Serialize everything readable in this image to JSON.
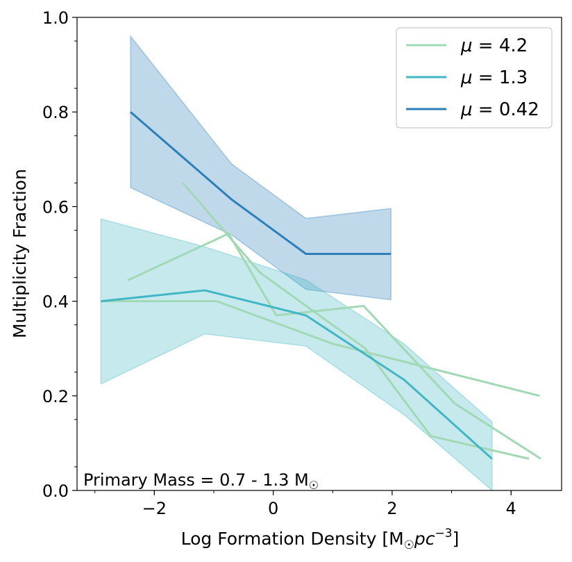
{
  "chart_data": {
    "type": "line",
    "xlabel": "Log Formation Density [M",
    "xlabel_sub": "☉",
    "xlabel_unit": "pc",
    "xlabel_exp": "−3",
    "xlabel_close": "]",
    "ylabel": "Multiplicity Fraction",
    "xlim": [
      -3.3,
      4.85
    ],
    "ylim": [
      0.0,
      1.0
    ],
    "xticks": [
      -2,
      0,
      2,
      4
    ],
    "xtick_labels": [
      "−2",
      "0",
      "2",
      "4"
    ],
    "yticks": [
      0.0,
      0.2,
      0.4,
      0.6,
      0.8,
      1.0
    ],
    "ytick_labels": [
      "0.0",
      "0.2",
      "0.4",
      "0.6",
      "0.8",
      "1.0"
    ],
    "annotation": {
      "text": "Primary Mass = 0.7 - 1.3 M",
      "sub": "☉"
    },
    "legend": {
      "position": "top-right",
      "entries": [
        {
          "label_prefix": "μ = ",
          "value": "4.2",
          "color": "#a1d9b4"
        },
        {
          "label_prefix": "μ = ",
          "value": "1.3",
          "color": "#41b6c4"
        },
        {
          "label_prefix": "μ = ",
          "value": "0.42",
          "color": "#2c7fb8"
        }
      ]
    },
    "series": [
      {
        "name": "μ = 0.42",
        "color": "#2c7fb8",
        "band_color": "#2c7fb8",
        "x": [
          -2.4,
          -0.7,
          0.55,
          1.98
        ],
        "y": [
          0.8,
          0.615,
          0.5,
          0.5
        ],
        "lower": [
          0.64,
          0.54,
          0.425,
          0.403
        ],
        "upper": [
          0.96,
          0.69,
          0.575,
          0.596
        ]
      },
      {
        "name": "μ = 1.3",
        "color": "#41b6c4",
        "band_color": "#41b6c4",
        "x": [
          -2.9,
          -1.15,
          0.55,
          2.2,
          3.68
        ],
        "y": [
          0.4,
          0.423,
          0.37,
          0.234,
          0.067
        ],
        "lower": [
          0.225,
          0.331,
          0.305,
          0.16,
          0.0
        ],
        "upper": [
          0.574,
          0.515,
          0.445,
          0.31,
          0.145
        ]
      },
      {
        "name": "μ = 4.2 (a)",
        "color": "#a1d9b4",
        "x": [
          -2.45,
          -0.75,
          0.05,
          1.52,
          3.05,
          4.5
        ],
        "y": [
          0.444,
          0.543,
          0.37,
          0.39,
          0.184,
          0.067
        ]
      },
      {
        "name": "μ = 4.2 (b)",
        "color": "#a1d9b4",
        "x": [
          -1.52,
          -0.22,
          1.55,
          2.65,
          4.3
        ],
        "y": [
          0.65,
          0.46,
          0.3,
          0.115,
          0.067
        ]
      },
      {
        "name": "μ = 4.2 (c)",
        "color": "#a1d9b4",
        "x": [
          -2.9,
          -0.95,
          1.0,
          2.65,
          4.48
        ],
        "y": [
          0.4,
          0.4,
          0.31,
          0.258,
          0.2
        ]
      }
    ]
  }
}
